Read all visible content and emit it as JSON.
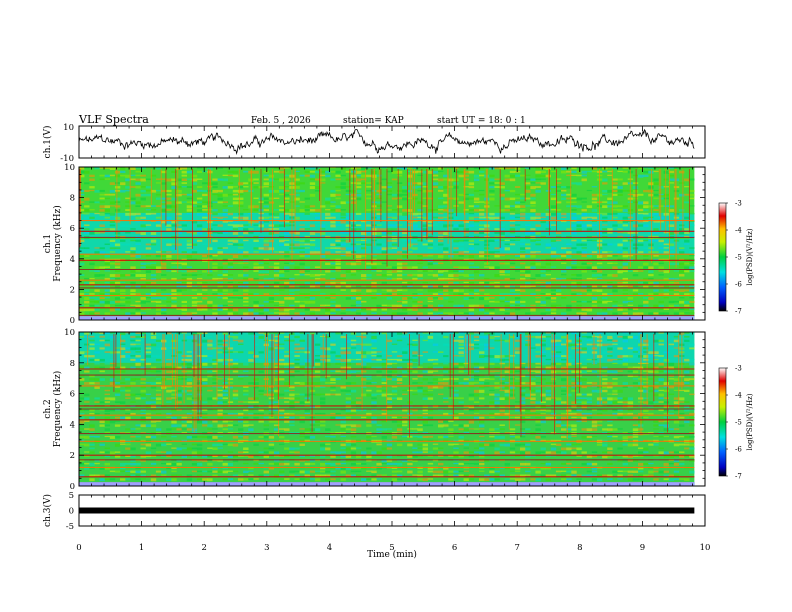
{
  "header": {
    "title": "VLF  Spectra",
    "date": "Feb. 5  , 2026",
    "station": "station= KAP",
    "start": "start  UT  =   18: 0   : 1"
  },
  "chart_data": {
    "type": "heatmap",
    "xlabel": "Time  (min)",
    "xlim": [
      0,
      10
    ],
    "x_ticks": [
      "0",
      "1",
      "2",
      "3",
      "4",
      "5",
      "6",
      "7",
      "8",
      "9",
      "10"
    ],
    "data_end_min": 9.83,
    "panels": [
      {
        "name": "ch1-waveform",
        "ylabel": "ch.1(V)",
        "ylim": [
          -10,
          10
        ],
        "y_ticks": [
          "10",
          "-10"
        ]
      },
      {
        "name": "ch1-spectrogram",
        "ylabel": "ch.1\nFrequency  (kHz)",
        "ylabel_top": "ch.1",
        "ylabel_main": "Frequency  (kHz)",
        "ylim": [
          0,
          10
        ],
        "y_ticks": [
          "0",
          "2",
          "4",
          "6",
          "8",
          "10"
        ],
        "quiet_bands_khz": [
          [
            4.3,
            5.3
          ],
          [
            5.4,
            7.0
          ]
        ],
        "lines_khz": [
          0.3,
          0.8,
          1.6,
          2.1,
          2.3,
          2.6,
          3.3,
          3.9,
          4.3,
          5.4,
          5.8,
          6.5
        ],
        "colorbar": {
          "label": "log(PSD)(V²/Hz)",
          "range": [
            -7,
            -3
          ],
          "ticks": [
            "-3",
            "-4",
            "-5",
            "-6",
            "-7"
          ]
        }
      },
      {
        "name": "ch2-spectrogram",
        "ylabel_top": "ch.2",
        "ylabel_main": "Frequency  (kHz)",
        "ylim": [
          0,
          10
        ],
        "y_ticks": [
          "0",
          "2",
          "4",
          "6",
          "8",
          "10"
        ],
        "quiet_bands_khz": [
          [
            8.0,
            10.0
          ]
        ],
        "lines_khz": [
          0.2,
          0.6,
          1.2,
          1.7,
          2.0,
          2.9,
          3.4,
          4.3,
          4.6,
          5.0,
          5.2,
          6.5,
          7.2,
          7.6
        ],
        "colorbar": {
          "label": "log(PSD)(V²/Hz)",
          "range": [
            -7,
            -3
          ],
          "ticks": [
            "-3",
            "-4",
            "-5",
            "-6",
            "-7"
          ]
        }
      },
      {
        "name": "ch3-waveform",
        "ylabel": "ch.3(V)",
        "ylim": [
          -5,
          5
        ],
        "y_ticks": [
          "5",
          "0",
          "-5"
        ],
        "level_v": 0
      }
    ]
  }
}
